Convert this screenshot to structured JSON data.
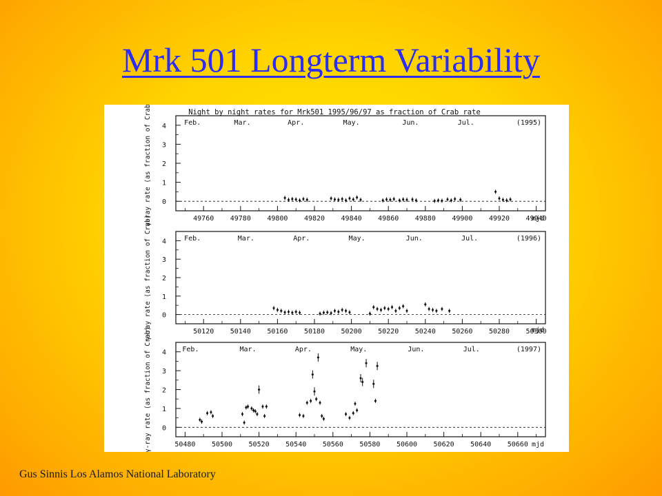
{
  "slide": {
    "title": "Mrk 501 Longterm Variability",
    "footer": "Gus Sinnis Los Alamos National Laboratory"
  },
  "colors": {
    "title": "#2d2df0",
    "background_center": "#ffe600",
    "background_edge": "#ff9a00"
  },
  "chart_data": {
    "type": "scatter",
    "title": "Night by night rates for Mrk501 1995/96/97 as fraction of Crab rate",
    "panels": [
      {
        "year_label": "(1995)",
        "ylabel": "γ-ray rate (as fraction of Crab)",
        "xlabel": "mjd",
        "xlim": [
          49745,
          49945
        ],
        "ylim": [
          -0.5,
          4.5
        ],
        "yticks": [
          0,
          1,
          2,
          3,
          4
        ],
        "xticks": [
          49760,
          49780,
          49800,
          49820,
          49840,
          49860,
          49880,
          49900,
          49920,
          49940
        ],
        "months": [
          {
            "label": "Feb.",
            "x": 49754
          },
          {
            "label": "Mar.",
            "x": 49781
          },
          {
            "label": "Apr.",
            "x": 49810
          },
          {
            "label": "May.",
            "x": 49840
          },
          {
            "label": "Jun.",
            "x": 49872
          },
          {
            "label": "Jul.",
            "x": 49902
          }
        ],
        "points": [
          [
            49804,
            0.18
          ],
          [
            49806,
            0.08
          ],
          [
            49808,
            0.12
          ],
          [
            49810,
            0.1
          ],
          [
            49812,
            0.05
          ],
          [
            49814,
            0.12
          ],
          [
            49816,
            0.08
          ],
          [
            49829,
            0.15
          ],
          [
            49831,
            0.1
          ],
          [
            49833,
            0.08
          ],
          [
            49835,
            0.12
          ],
          [
            49837,
            0.05
          ],
          [
            49839,
            0.15
          ],
          [
            49841,
            0.1
          ],
          [
            49843,
            0.2
          ],
          [
            49845,
            0.08
          ],
          [
            49857,
            0.05
          ],
          [
            49859,
            0.1
          ],
          [
            49861,
            0.08
          ],
          [
            49863,
            0.12
          ],
          [
            49866,
            0.05
          ],
          [
            49868,
            0.1
          ],
          [
            49870,
            0.08
          ],
          [
            49873,
            0.1
          ],
          [
            49875,
            0.05
          ],
          [
            49885,
            0.02
          ],
          [
            49887,
            0.05
          ],
          [
            49889,
            0.03
          ],
          [
            49892,
            0.1
          ],
          [
            49894,
            0.05
          ],
          [
            49896,
            0.12
          ],
          [
            49899,
            0.08
          ],
          [
            49918,
            0.5
          ],
          [
            49920,
            0.15
          ],
          [
            49922,
            0.08
          ],
          [
            49924,
            0.05
          ],
          [
            49926,
            0.1
          ]
        ]
      },
      {
        "year_label": "(1996)",
        "ylabel": "γ-ray rate (as fraction of Crab)",
        "xlabel": "mjd",
        "xlim": [
          50105,
          50305
        ],
        "ylim": [
          -0.5,
          4.5
        ],
        "yticks": [
          0,
          1,
          2,
          3,
          4
        ],
        "xticks": [
          50120,
          50140,
          50160,
          50180,
          50200,
          50220,
          50240,
          50260,
          50280,
          50300
        ],
        "months": [
          {
            "label": "Feb.",
            "x": 50114
          },
          {
            "label": "Mar.",
            "x": 50143
          },
          {
            "label": "Apr.",
            "x": 50173
          },
          {
            "label": "May.",
            "x": 50203
          },
          {
            "label": "Jun.",
            "x": 50234
          },
          {
            "label": "Jul.",
            "x": 50264
          }
        ],
        "points": [
          [
            50158,
            0.35
          ],
          [
            50160,
            0.25
          ],
          [
            50162,
            0.2
          ],
          [
            50164,
            0.12
          ],
          [
            50166,
            0.15
          ],
          [
            50168,
            0.1
          ],
          [
            50170,
            0.15
          ],
          [
            50172,
            0.1
          ],
          [
            50183,
            0.05
          ],
          [
            50185,
            0.1
          ],
          [
            50187,
            0.12
          ],
          [
            50189,
            0.08
          ],
          [
            50191,
            0.2
          ],
          [
            50193,
            0.15
          ],
          [
            50195,
            0.25
          ],
          [
            50197,
            0.2
          ],
          [
            50199,
            0.12
          ],
          [
            50210,
            0.05
          ],
          [
            50212,
            0.4
          ],
          [
            50214,
            0.3
          ],
          [
            50216,
            0.25
          ],
          [
            50218,
            0.35
          ],
          [
            50220,
            0.3
          ],
          [
            50222,
            0.4
          ],
          [
            50224,
            0.2
          ],
          [
            50226,
            0.35
          ],
          [
            50228,
            0.45
          ],
          [
            50230,
            0.2
          ],
          [
            50240,
            0.55
          ],
          [
            50242,
            0.3
          ],
          [
            50244,
            0.25
          ],
          [
            50246,
            0.2
          ],
          [
            50249,
            0.3
          ],
          [
            50253,
            0.2
          ]
        ]
      },
      {
        "year_label": "(1997)",
        "ylabel": "γ-ray rate (as fraction of Crab)",
        "xlabel": "mjd",
        "xlim": [
          50475,
          50675
        ],
        "ylim": [
          -0.5,
          4.5
        ],
        "yticks": [
          0,
          1,
          2,
          3,
          4
        ],
        "xticks": [
          50480,
          50500,
          50520,
          50540,
          50560,
          50580,
          50600,
          50620,
          50640,
          50660
        ],
        "months": [
          {
            "label": "Feb.",
            "x": 50483
          },
          {
            "label": "Mar.",
            "x": 50514
          },
          {
            "label": "Apr.",
            "x": 50544
          },
          {
            "label": "May.",
            "x": 50574
          },
          {
            "label": "Jun.",
            "x": 50605
          },
          {
            "label": "Jul.",
            "x": 50635
          }
        ],
        "points": [
          [
            50488,
            0.4
          ],
          [
            50489,
            0.3
          ],
          [
            50492,
            0.75
          ],
          [
            50494,
            0.8
          ],
          [
            50495,
            0.6
          ],
          [
            50511,
            0.7
          ],
          [
            50512,
            0.25
          ],
          [
            50513,
            1.05
          ],
          [
            50514,
            1.1
          ],
          [
            50516,
            1.0
          ],
          [
            50517,
            0.9
          ],
          [
            50518,
            0.85
          ],
          [
            50519,
            0.7
          ],
          [
            50520,
            2.0
          ],
          [
            50522,
            1.1
          ],
          [
            50523,
            0.6
          ],
          [
            50524,
            1.1
          ],
          [
            50542,
            0.65
          ],
          [
            50544,
            0.6
          ],
          [
            50546,
            1.3
          ],
          [
            50548,
            1.4
          ],
          [
            50549,
            2.8
          ],
          [
            50550,
            1.9
          ],
          [
            50551,
            1.5
          ],
          [
            50552,
            3.7
          ],
          [
            50553,
            1.3
          ],
          [
            50554,
            0.6
          ],
          [
            50555,
            0.45
          ],
          [
            50567,
            0.7
          ],
          [
            50569,
            0.5
          ],
          [
            50571,
            0.75
          ],
          [
            50572,
            1.25
          ],
          [
            50573,
            0.9
          ],
          [
            50575,
            2.6
          ],
          [
            50576,
            2.4
          ],
          [
            50578,
            3.4
          ],
          [
            50582,
            2.3
          ],
          [
            50583,
            1.4
          ],
          [
            50584,
            3.25
          ]
        ]
      }
    ]
  }
}
